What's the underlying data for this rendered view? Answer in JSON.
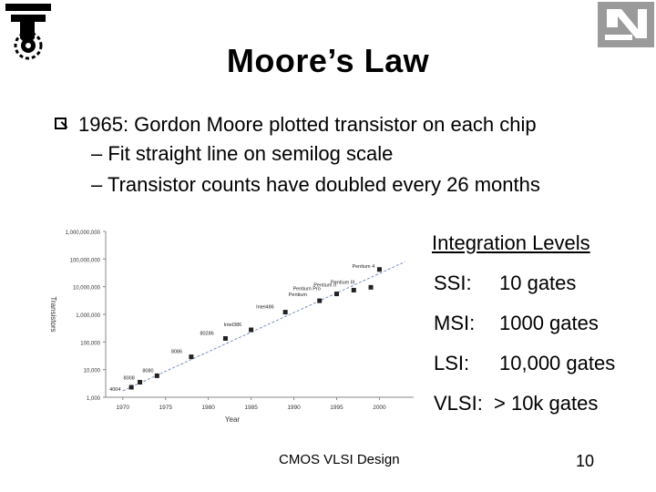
{
  "slide": {
    "title": "Moore’s Law",
    "bullet_main": "1965: Gordon Moore plotted transistor on each chip",
    "sub_bullets": [
      "– Fit straight line on semilog scale",
      "– Transistor counts have doubled every 26 months"
    ],
    "integration": {
      "title": "Integration Levels",
      "levels": [
        {
          "name": "SSI:",
          "value": "10 gates"
        },
        {
          "name": "MSI:",
          "value": "1000 gates"
        },
        {
          "name": "LSI:",
          "value": "10,000 gates"
        },
        {
          "name": "VLSI:",
          "value": "> 10k gates"
        }
      ]
    },
    "footer": "CMOS VLSI Design",
    "page_number": "10",
    "logo_left_icon": "technion-logo-icon",
    "logo_right_icon": "faculty-logo-icon"
  },
  "chart_data": {
    "type": "scatter",
    "xlabel": "Year",
    "ylabel": "Transistors",
    "x_ticks": [
      1970,
      1975,
      1980,
      1985,
      1990,
      1995,
      2000
    ],
    "y_ticks": [
      1000,
      10000,
      100000,
      1000000,
      10000000,
      100000000,
      1000000000
    ],
    "y_tick_labels": [
      "1,000",
      "10,000",
      "100,000",
      "1,000,000",
      "10,000,000",
      "100,000,000",
      "1,000,000,000"
    ],
    "xlim": [
      1968,
      2004
    ],
    "ylim": [
      1000,
      1000000000
    ],
    "yscale": "log",
    "points": [
      {
        "label": "4004",
        "x": 1971,
        "y": 2300
      },
      {
        "label": "8008",
        "x": 1972,
        "y": 3500
      },
      {
        "label": "8080",
        "x": 1974,
        "y": 6000
      },
      {
        "label": "8086",
        "x": 1978,
        "y": 29000
      },
      {
        "label": "80286",
        "x": 1982,
        "y": 134000
      },
      {
        "label": "Intel386",
        "x": 1985,
        "y": 275000
      },
      {
        "label": "Intel486",
        "x": 1989,
        "y": 1200000
      },
      {
        "label": "Pentium",
        "x": 1993,
        "y": 3100000
      },
      {
        "label": "Pentium Pro",
        "x": 1995,
        "y": 5500000
      },
      {
        "label": "Pentium II",
        "x": 1997,
        "y": 7500000
      },
      {
        "label": "Pentium III",
        "x": 1999,
        "y": 9500000
      },
      {
        "label": "Pentium 4",
        "x": 2000,
        "y": 42000000
      }
    ],
    "trend": {
      "x": [
        1970,
        2003
      ],
      "y": [
        1700,
        80000000
      ]
    },
    "grid": false,
    "legend": "none"
  }
}
